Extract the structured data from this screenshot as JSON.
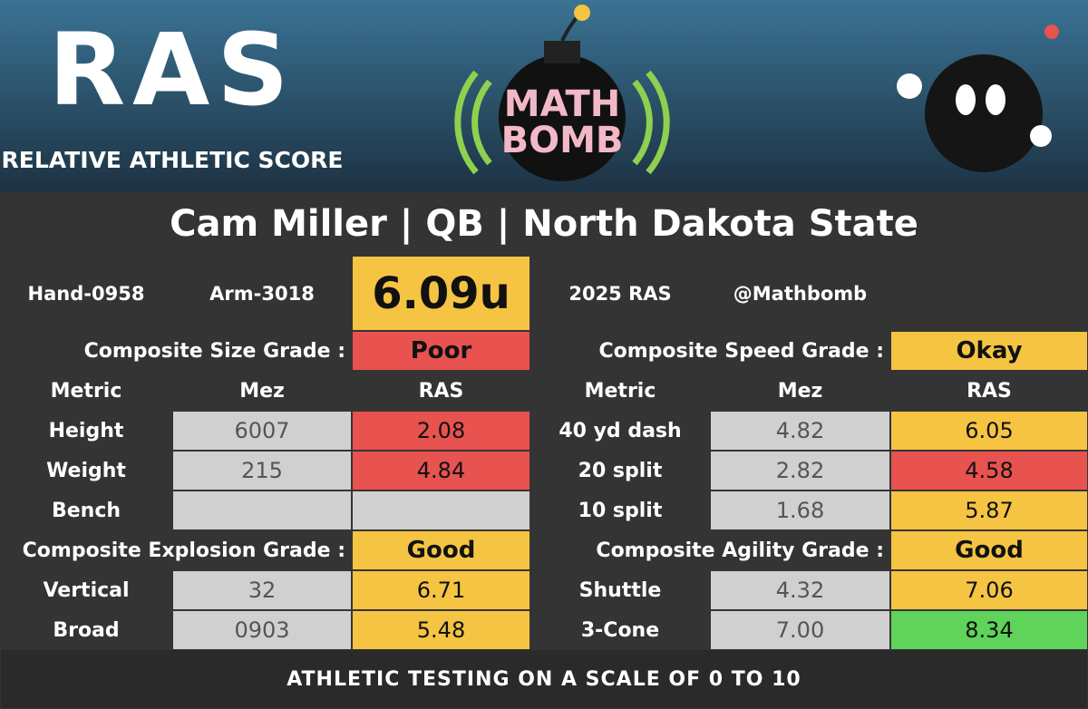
{
  "header": {
    "logo_title": "RAS",
    "logo_subtitle": "RELATIVE ATHLETIC SCORE",
    "badge_top": "MATH",
    "badge_bottom": "BOMB"
  },
  "title": "Cam Miller | QB | North Dakota State",
  "info": [
    "Hand-0958",
    "Arm-3018",
    "6.09u",
    "2025 RAS",
    "@Mathbomb"
  ],
  "columns": [
    "Metric",
    "Mez",
    "RAS"
  ],
  "left_groups": [
    {
      "grade_label": "Composite Size Grade :",
      "grade": "Poor",
      "grade_color": "#e8524f",
      "rows": [
        {
          "metric": "Height",
          "mez": "6007",
          "ras": "2.08",
          "ras_color": "#e8524f"
        },
        {
          "metric": "Weight",
          "mez": "215",
          "ras": "4.84",
          "ras_color": "#e8524f"
        },
        {
          "metric": "Bench",
          "mez": null,
          "ras": null,
          "ras_color": "#d0d0d0"
        }
      ]
    },
    {
      "grade_label": "Composite Explosion Grade :",
      "grade": "Good",
      "grade_color": "#f5c443",
      "rows": [
        {
          "metric": "Vertical",
          "mez": "32",
          "ras": "6.71",
          "ras_color": "#f5c443"
        },
        {
          "metric": "Broad",
          "mez": "0903",
          "ras": "5.48",
          "ras_color": "#f5c443"
        }
      ]
    }
  ],
  "right_groups": [
    {
      "grade_label": "Composite Speed Grade :",
      "grade": "Okay",
      "grade_color": "#f5c443",
      "rows": [
        {
          "metric": "40 yd dash",
          "mez": "4.82",
          "ras": "6.05",
          "ras_color": "#f5c443"
        },
        {
          "metric": "20 split",
          "mez": "2.82",
          "ras": "4.58",
          "ras_color": "#e8524f"
        },
        {
          "metric": "10 split",
          "mez": "1.68",
          "ras": "5.87",
          "ras_color": "#f5c443"
        }
      ]
    },
    {
      "grade_label": "Composite Agility Grade :",
      "grade": "Good",
      "grade_color": "#f5c443",
      "rows": [
        {
          "metric": "Shuttle",
          "mez": "4.32",
          "ras": "7.06",
          "ras_color": "#f5c443"
        },
        {
          "metric": "3-Cone",
          "mez": "7.00",
          "ras": "8.34",
          "ras_color": "#5fd35a"
        }
      ]
    }
  ],
  "footer": "ATHLETIC TESTING ON A SCALE OF 0 TO 10"
}
